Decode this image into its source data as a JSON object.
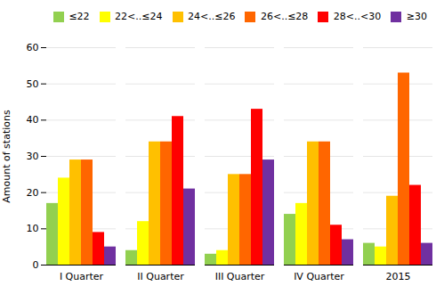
{
  "chart_data": {
    "type": "bar",
    "categories": [
      "I Quarter",
      "II Quarter",
      "III Quarter",
      "IV Quarter",
      "2015"
    ],
    "series": [
      {
        "name": "≤22",
        "color": "#92d050",
        "values": [
          17,
          4,
          3,
          14,
          6
        ]
      },
      {
        "name": "22<..≤24",
        "color": "#ffff00",
        "values": [
          24,
          12,
          4,
          17,
          5
        ]
      },
      {
        "name": "24<..≤26",
        "color": "#ffc000",
        "values": [
          29,
          34,
          25,
          34,
          19
        ]
      },
      {
        "name": "26<..≤28",
        "color": "#ff6600",
        "values": [
          29,
          34,
          25,
          34,
          53
        ]
      },
      {
        "name": "28<..<30",
        "color": "#ff0000",
        "values": [
          9,
          41,
          43,
          11,
          22
        ]
      },
      {
        "name": "≥30",
        "color": "#7030a0",
        "values": [
          5,
          21,
          29,
          7,
          6
        ]
      }
    ],
    "ylabel": "Amount of stations",
    "ylim": [
      0,
      60
    ],
    "yticks": [
      0,
      10,
      20,
      30,
      40,
      50,
      60
    ],
    "grid": true,
    "legend": "upper right"
  }
}
